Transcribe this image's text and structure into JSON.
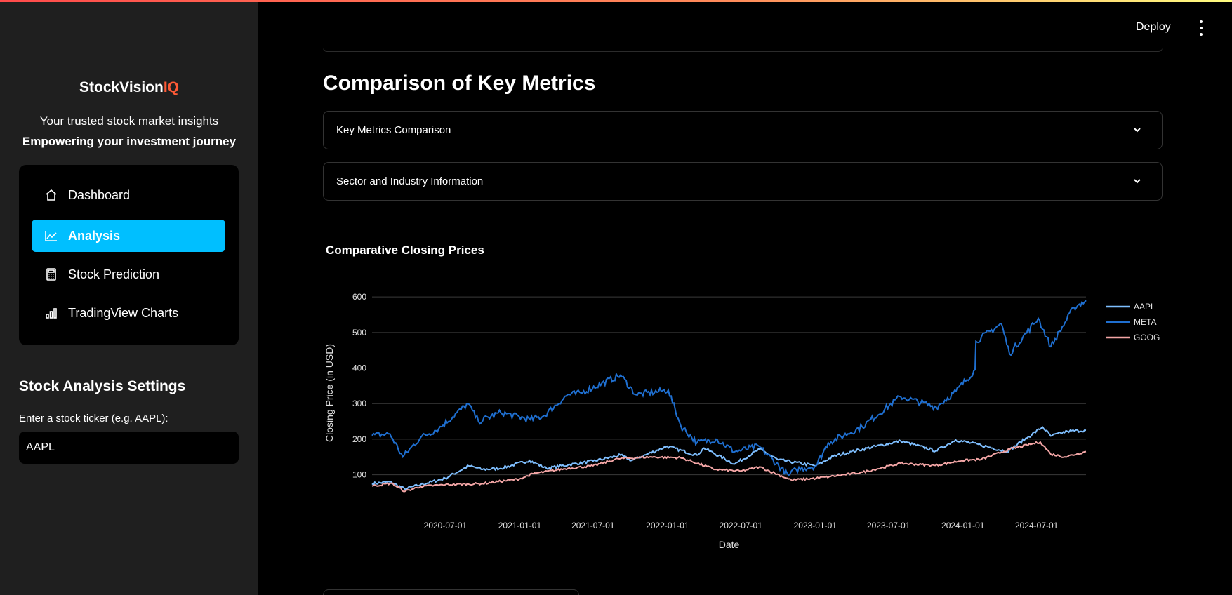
{
  "sidebar": {
    "brand_main": "StockVision",
    "brand_accent": "IQ",
    "tagline": "Your trusted stock market insights",
    "tagline_bold": "Empowering your investment journey",
    "nav": [
      {
        "label": "Dashboard",
        "icon": "house-icon"
      },
      {
        "label": "Analysis",
        "icon": "line-chart-icon",
        "active": true
      },
      {
        "label": "Stock Prediction",
        "icon": "calculator-icon"
      },
      {
        "label": "TradingView Charts",
        "icon": "bar-chart-icon"
      }
    ],
    "settings_title": "Stock Analysis Settings",
    "ticker_label": "Enter a stock ticker (e.g. AAPL):",
    "ticker_value": "AAPL"
  },
  "header": {
    "deploy_label": "Deploy"
  },
  "main": {
    "section_title": "Comparison of Key Metrics",
    "expanders": [
      "Key Metrics Comparison",
      "Sector and Industry Information"
    ],
    "chart_title": "Comparative Closing Prices"
  },
  "colors": {
    "accent": "#00bfff",
    "brand_accent": "#ff5a36",
    "aapl": "#7fbfff",
    "meta": "#1f6fd0",
    "goog": "#f4a6a6"
  },
  "chart_data": {
    "type": "line",
    "title": "Comparative Closing Prices",
    "xlabel": "Date",
    "ylabel": "Closing Price (in USD)",
    "x_ticks": [
      "2020-07-01",
      "2021-01-01",
      "2021-07-01",
      "2022-01-01",
      "2022-07-01",
      "2023-01-01",
      "2023-07-01",
      "2024-01-01",
      "2024-07-01"
    ],
    "y_ticks": [
      100,
      200,
      300,
      400,
      500,
      600
    ],
    "ylim": [
      40,
      620
    ],
    "xlim": [
      "2020-01-02",
      "2024-10-31"
    ],
    "legend_position": "top-right",
    "grid": true,
    "series": [
      {
        "name": "AAPL",
        "points": [
          [
            "2020-01-02",
            75
          ],
          [
            "2020-02-15",
            80
          ],
          [
            "2020-03-23",
            60
          ],
          [
            "2020-05-01",
            72
          ],
          [
            "2020-07-01",
            90
          ],
          [
            "2020-08-28",
            125
          ],
          [
            "2020-10-01",
            115
          ],
          [
            "2020-11-15",
            118
          ],
          [
            "2021-01-25",
            140
          ],
          [
            "2021-03-08",
            118
          ],
          [
            "2021-05-01",
            128
          ],
          [
            "2021-07-01",
            138
          ],
          [
            "2021-09-07",
            155
          ],
          [
            "2021-10-04",
            140
          ],
          [
            "2021-12-31",
            180
          ],
          [
            "2022-03-15",
            155
          ],
          [
            "2022-04-01",
            175
          ],
          [
            "2022-06-16",
            130
          ],
          [
            "2022-08-17",
            172
          ],
          [
            "2022-10-01",
            142
          ],
          [
            "2023-01-03",
            125
          ],
          [
            "2023-02-15",
            152
          ],
          [
            "2023-04-01",
            165
          ],
          [
            "2023-07-31",
            195
          ],
          [
            "2023-10-26",
            167
          ],
          [
            "2023-12-14",
            198
          ],
          [
            "2024-02-15",
            183
          ],
          [
            "2024-04-19",
            165
          ],
          [
            "2024-06-11",
            207
          ],
          [
            "2024-07-16",
            234
          ],
          [
            "2024-08-05",
            209
          ],
          [
            "2024-09-15",
            222
          ],
          [
            "2024-10-31",
            225
          ]
        ]
      },
      {
        "name": "META",
        "points": [
          [
            "2020-01-02",
            210
          ],
          [
            "2020-02-15",
            215
          ],
          [
            "2020-03-18",
            150
          ],
          [
            "2020-05-01",
            205
          ],
          [
            "2020-06-15",
            230
          ],
          [
            "2020-08-26",
            300
          ],
          [
            "2020-09-21",
            250
          ],
          [
            "2020-11-15",
            275
          ],
          [
            "2021-01-27",
            255
          ],
          [
            "2021-03-01",
            265
          ],
          [
            "2021-04-29",
            325
          ],
          [
            "2021-06-01",
            330
          ],
          [
            "2021-09-07",
            380
          ],
          [
            "2021-10-15",
            325
          ],
          [
            "2022-01-03",
            338
          ],
          [
            "2022-02-03",
            237
          ],
          [
            "2022-03-15",
            190
          ],
          [
            "2022-05-01",
            200
          ],
          [
            "2022-06-17",
            165
          ],
          [
            "2022-08-15",
            180
          ],
          [
            "2022-10-27",
            98
          ],
          [
            "2022-11-15",
            115
          ],
          [
            "2023-01-03",
            125
          ],
          [
            "2023-02-02",
            190
          ],
          [
            "2023-04-27",
            235
          ],
          [
            "2023-07-31",
            320
          ],
          [
            "2023-10-27",
            290
          ],
          [
            "2023-12-15",
            335
          ],
          [
            "2024-01-31",
            395
          ],
          [
            "2024-02-02",
            475
          ],
          [
            "2024-04-05",
            525
          ],
          [
            "2024-04-25",
            440
          ],
          [
            "2024-07-05",
            540
          ],
          [
            "2024-08-05",
            460
          ],
          [
            "2024-10-01",
            570
          ],
          [
            "2024-10-31",
            590
          ]
        ]
      },
      {
        "name": "GOOG",
        "points": [
          [
            "2020-01-02",
            68
          ],
          [
            "2020-02-19",
            76
          ],
          [
            "2020-03-23",
            53
          ],
          [
            "2020-05-01",
            67
          ],
          [
            "2020-07-01",
            72
          ],
          [
            "2020-10-01",
            75
          ],
          [
            "2020-12-31",
            88
          ],
          [
            "2021-02-03",
            103
          ],
          [
            "2021-04-30",
            118
          ],
          [
            "2021-07-01",
            125
          ],
          [
            "2021-09-01",
            145
          ],
          [
            "2021-11-18",
            150
          ],
          [
            "2022-02-02",
            148
          ],
          [
            "2022-04-29",
            115
          ],
          [
            "2022-07-01",
            110
          ],
          [
            "2022-08-16",
            122
          ],
          [
            "2022-11-03",
            85
          ],
          [
            "2023-01-03",
            90
          ],
          [
            "2023-02-08",
            95
          ],
          [
            "2023-04-28",
            107
          ],
          [
            "2023-07-31",
            132
          ],
          [
            "2023-10-25",
            126
          ],
          [
            "2023-12-29",
            140
          ],
          [
            "2024-02-15",
            143
          ],
          [
            "2024-04-26",
            172
          ],
          [
            "2024-07-10",
            192
          ],
          [
            "2024-08-05",
            158
          ],
          [
            "2024-09-09",
            150
          ],
          [
            "2024-10-31",
            165
          ]
        ]
      }
    ]
  }
}
